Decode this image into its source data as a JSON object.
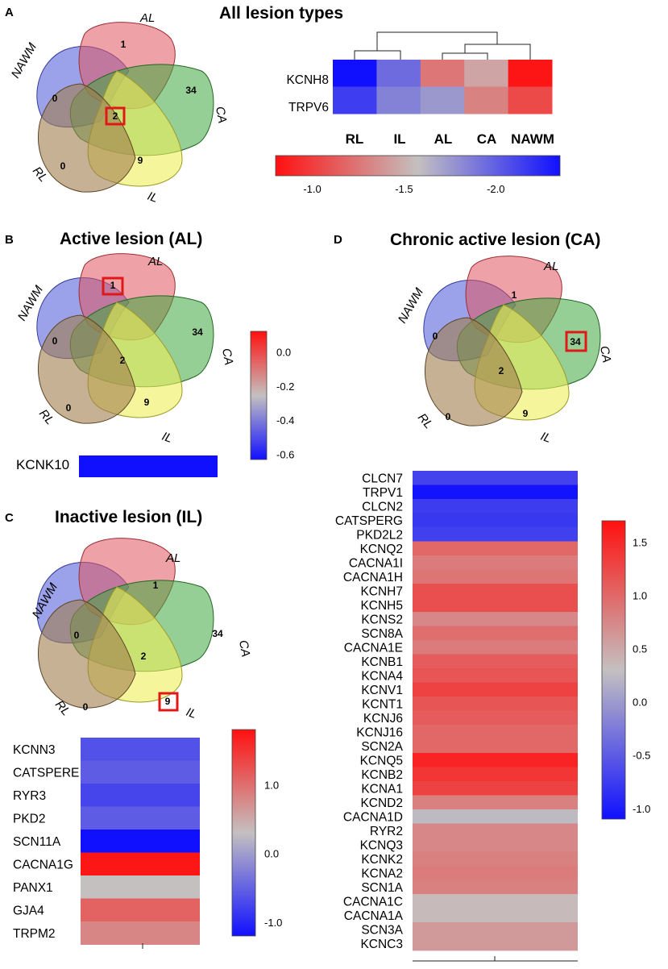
{
  "venn": {
    "sets": [
      "AL",
      "CA",
      "IL",
      "RL",
      "NAWM"
    ],
    "counts": [
      "1",
      "34",
      "9",
      "0",
      "0",
      "2"
    ]
  },
  "panels": {
    "A": {
      "letter": "A",
      "title": "All lesion types",
      "highlight_count": "2"
    },
    "B": {
      "letter": "B",
      "title": "Active lesion (AL)",
      "highlight_count": "1"
    },
    "C": {
      "letter": "C",
      "title": "Inactive lesion (IL)",
      "highlight_count": "9"
    },
    "D": {
      "letter": "D",
      "title": "Chronic active lesion (CA)",
      "highlight_count": "34"
    }
  },
  "chart_data": [
    {
      "panel": "A",
      "type": "heatmap",
      "title": "All lesion types",
      "rows": [
        "KCNH8",
        "TRPV6"
      ],
      "columns": [
        "RL",
        "IL",
        "AL",
        "CA",
        "NAWM"
      ],
      "values": [
        [
          -2.35,
          -1.95,
          -1.25,
          -1.45,
          -0.82
        ],
        [
          -2.15,
          -1.85,
          -1.75,
          -1.3,
          -1.05
        ]
      ],
      "dendrogram": "columns",
      "colorbar": {
        "orientation": "horizontal",
        "range": [
          -0.8,
          -2.35
        ],
        "ticks": [
          "-1.0",
          "-1.5",
          "-2.0"
        ],
        "tick_values": [
          -1.0,
          -1.5,
          -2.0
        ]
      }
    },
    {
      "panel": "B",
      "type": "heatmap",
      "title": "Active lesion (AL)",
      "rows": [
        "KCNK10"
      ],
      "values": [
        -0.63
      ],
      "colorbar": {
        "orientation": "vertical",
        "range": [
          -0.63,
          0.12
        ],
        "ticks": [
          "0.0",
          "-0.2",
          "-0.4",
          "-0.6"
        ],
        "tick_values": [
          0.0,
          -0.2,
          -0.4,
          -0.6
        ]
      }
    },
    {
      "panel": "C",
      "type": "heatmap",
      "title": "Inactive lesion (IL)",
      "rows": [
        "KCNN3",
        "CATSPERE",
        "RYR3",
        "PKD2",
        "SCN11A",
        "CACNA1G",
        "PANX1",
        "GJA4",
        "TRPM2"
      ],
      "values": [
        -0.65,
        -0.55,
        -0.75,
        -0.55,
        -1.2,
        1.75,
        0.3,
        1.1,
        0.8
      ],
      "colorbar": {
        "orientation": "vertical",
        "range": [
          -1.2,
          1.8
        ],
        "ticks": [
          "1.0",
          "0.0",
          "-1.0"
        ],
        "tick_values": [
          1.0,
          0.0,
          -1.0
        ]
      }
    },
    {
      "panel": "D",
      "type": "heatmap",
      "title": "Chronic active lesion (CA)",
      "rows": [
        "CLCN7",
        "TRPV1",
        "CLCN2",
        "CATSPERG",
        "PKD2L2",
        "KCNQ2",
        "CACNA1I",
        "CACNA1H",
        "KCNH7",
        "KCNH5",
        "KCNS2",
        "SCN8A",
        "CACNA1E",
        "KCNB1",
        "KCNA4",
        "KCNV1",
        "KCNT1",
        "KCNJ6",
        "KCNJ16",
        "SCN2A",
        "KCNQ5",
        "KCNB2",
        "KCNA1",
        "KCND2",
        "CACNA1D",
        "RYR2",
        "KCNQ3",
        "KCNK2",
        "KCNA2",
        "SCN1A",
        "CACNA1C",
        "CACNA1A",
        "SCN3A",
        "KCNC3"
      ],
      "values": [
        -0.7,
        -1.08,
        -0.75,
        -0.78,
        -0.72,
        1.0,
        0.85,
        0.9,
        1.2,
        1.2,
        0.75,
        0.95,
        0.85,
        1.1,
        1.15,
        1.3,
        1.15,
        1.1,
        1.0,
        1.0,
        1.55,
        1.4,
        1.3,
        0.8,
        0.25,
        0.75,
        0.75,
        0.8,
        0.85,
        0.8,
        0.35,
        0.35,
        0.6,
        0.6
      ],
      "colorbar": {
        "orientation": "vertical",
        "range": [
          -1.1,
          1.7
        ],
        "ticks": [
          "1.5",
          "1.0",
          "0.5",
          "0.0",
          "-0.5",
          "-1.0"
        ],
        "tick_values": [
          1.5,
          1.0,
          0.5,
          0.0,
          -0.5,
          -1.0
        ]
      }
    }
  ]
}
